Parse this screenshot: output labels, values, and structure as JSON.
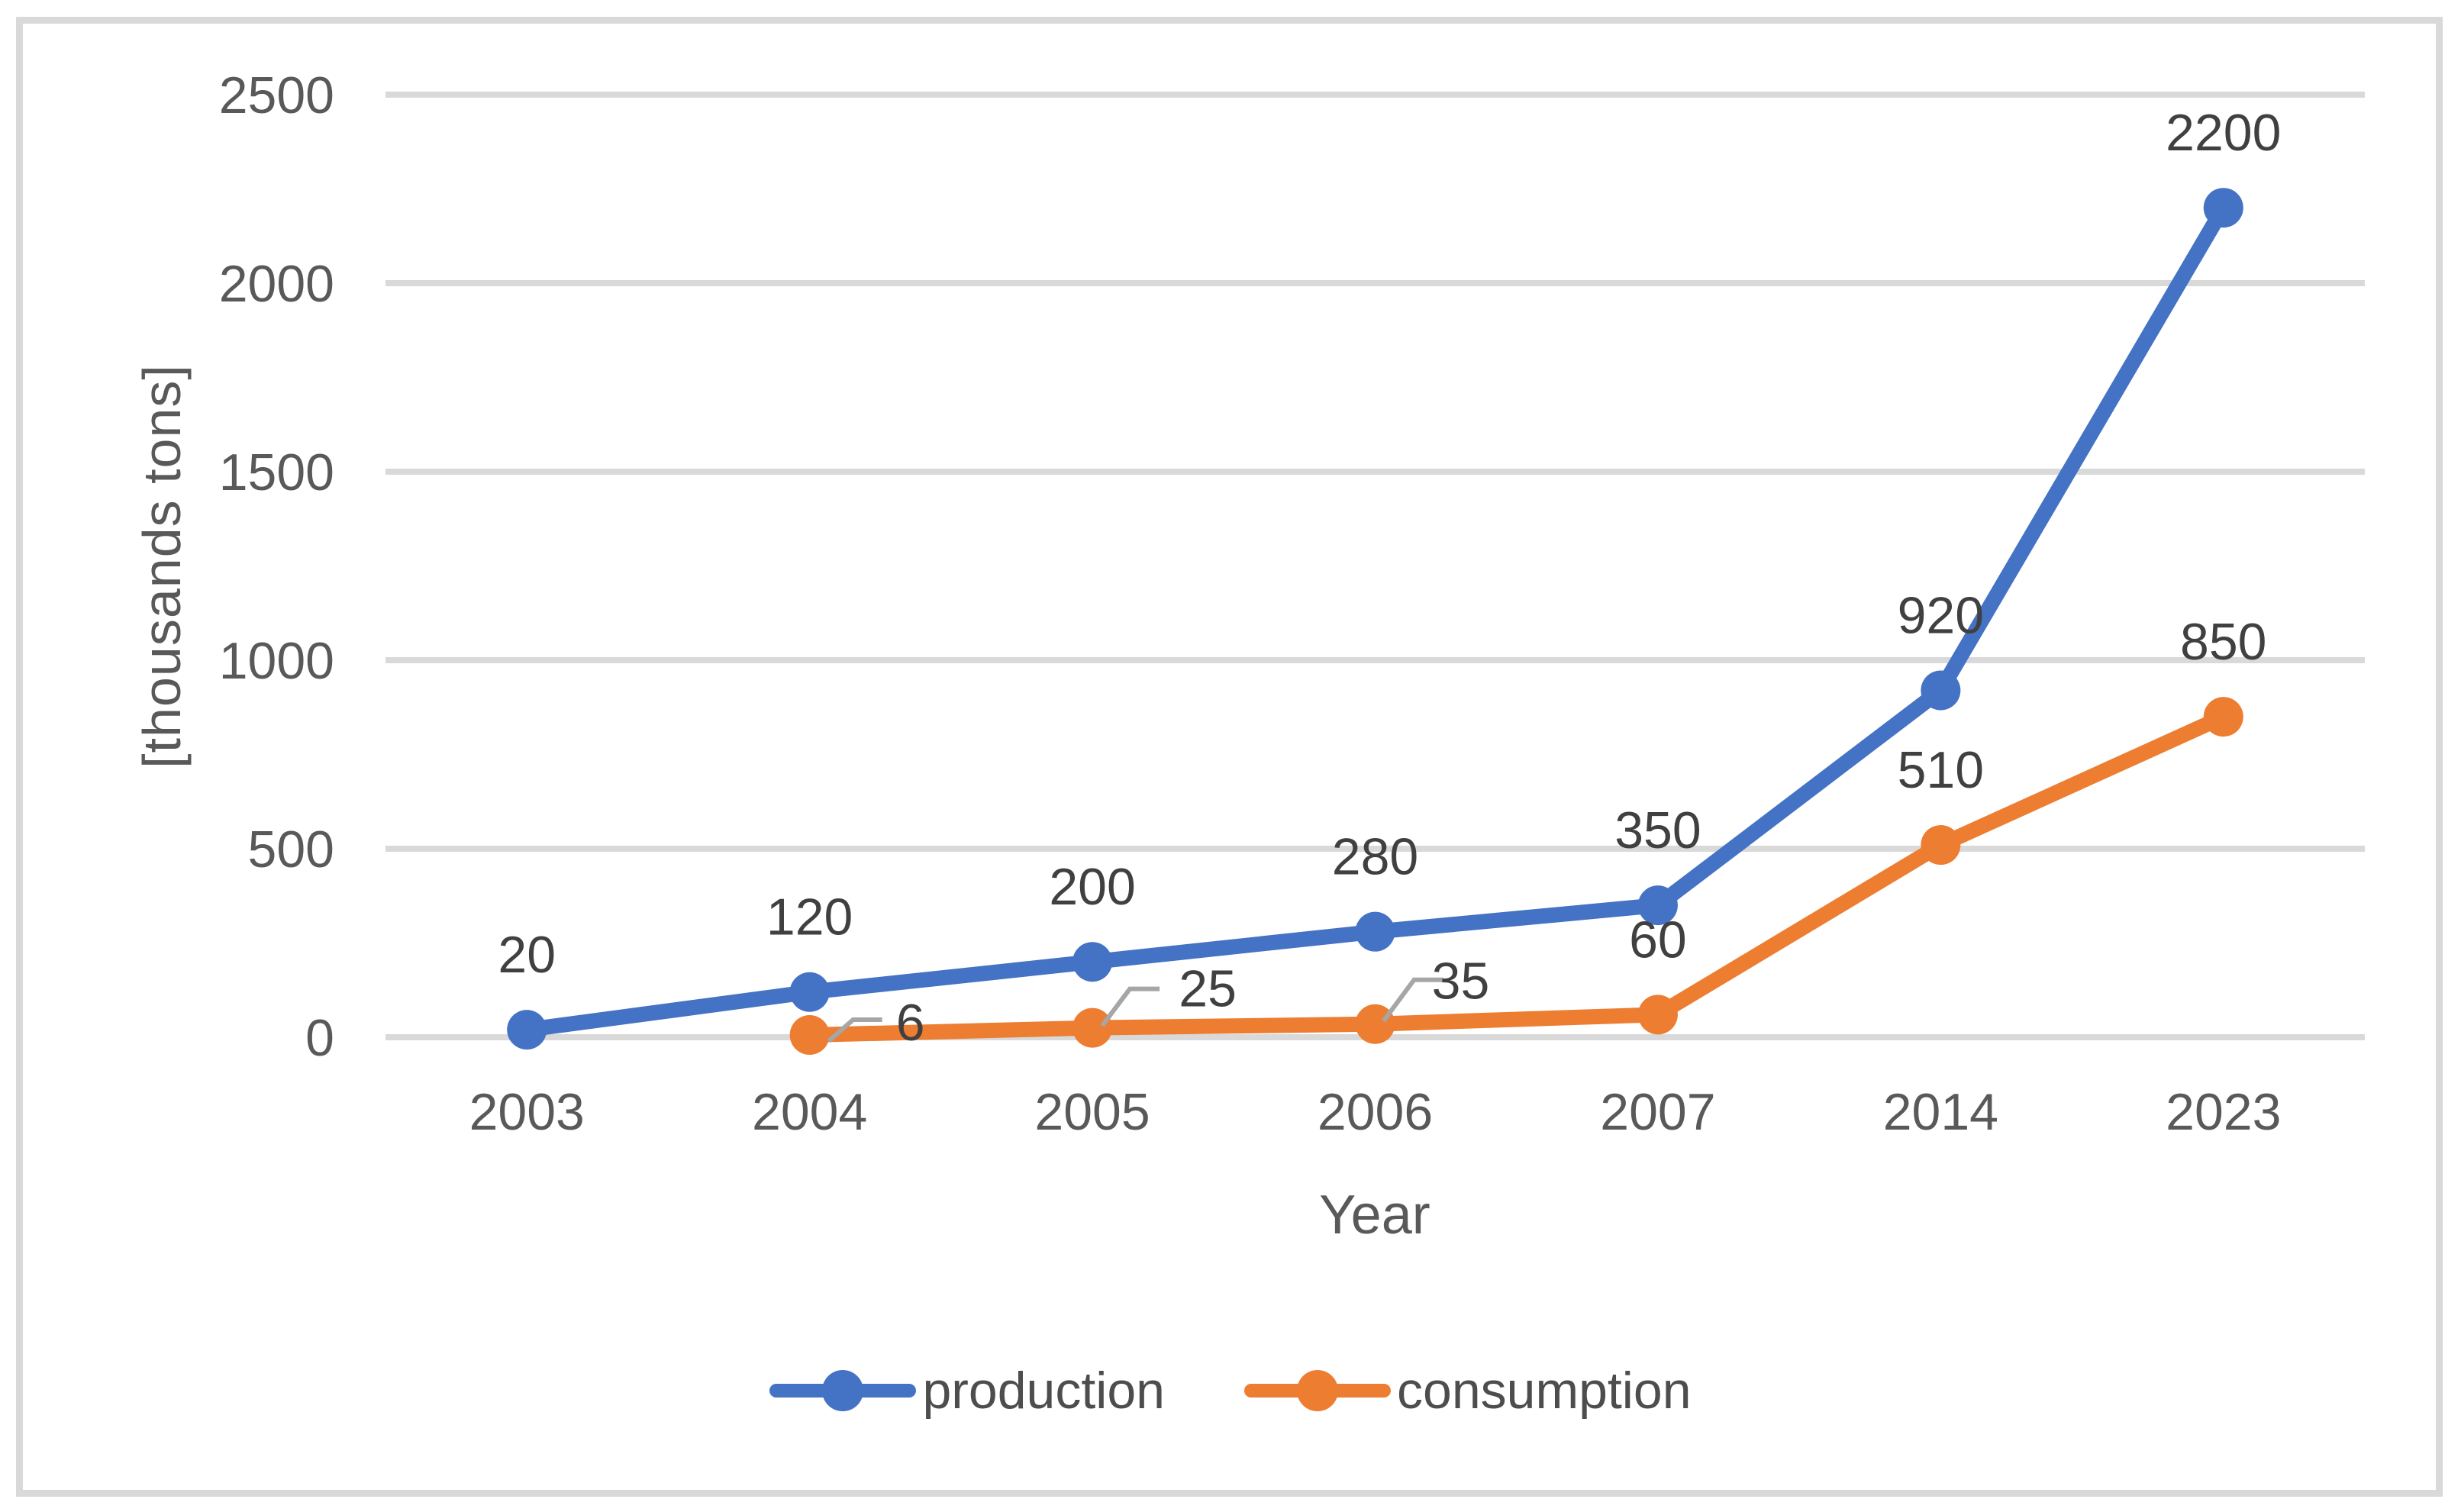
{
  "colors": {
    "grid": "#D9D9D9",
    "border": "#D9D9D9",
    "tick_text": "#595959",
    "data_label_text": "#404040",
    "leader_line": "#A6A6A6",
    "production": "#4472C4",
    "consumption": "#ED7D31"
  },
  "chart_data": {
    "type": "line",
    "xlabel": "Year",
    "ylabel": "[thousands tons]",
    "categories": [
      "2003",
      "2004",
      "2005",
      "2006",
      "2007",
      "2014",
      "2023"
    ],
    "series": [
      {
        "name": "production",
        "color": "#4472C4",
        "values": [
          20,
          120,
          200,
          280,
          350,
          920,
          2200
        ],
        "data_labels": [
          "20",
          "120",
          "200",
          "280",
          "350",
          "920",
          "2200"
        ]
      },
      {
        "name": "consumption",
        "color": "#ED7D31",
        "values": [
          null,
          6,
          25,
          35,
          60,
          510,
          850
        ],
        "data_labels": [
          null,
          "6",
          "25",
          "35",
          "60",
          "510",
          "850"
        ],
        "callout_label_points": [
          1,
          2,
          3
        ]
      }
    ],
    "ylim": [
      0,
      2500
    ],
    "ytick_step": 500,
    "yticks": [
      "0",
      "500",
      "1000",
      "1500",
      "2000",
      "2500"
    ],
    "grid": "horizontal",
    "legend_position": "bottom",
    "markers": "circle"
  }
}
